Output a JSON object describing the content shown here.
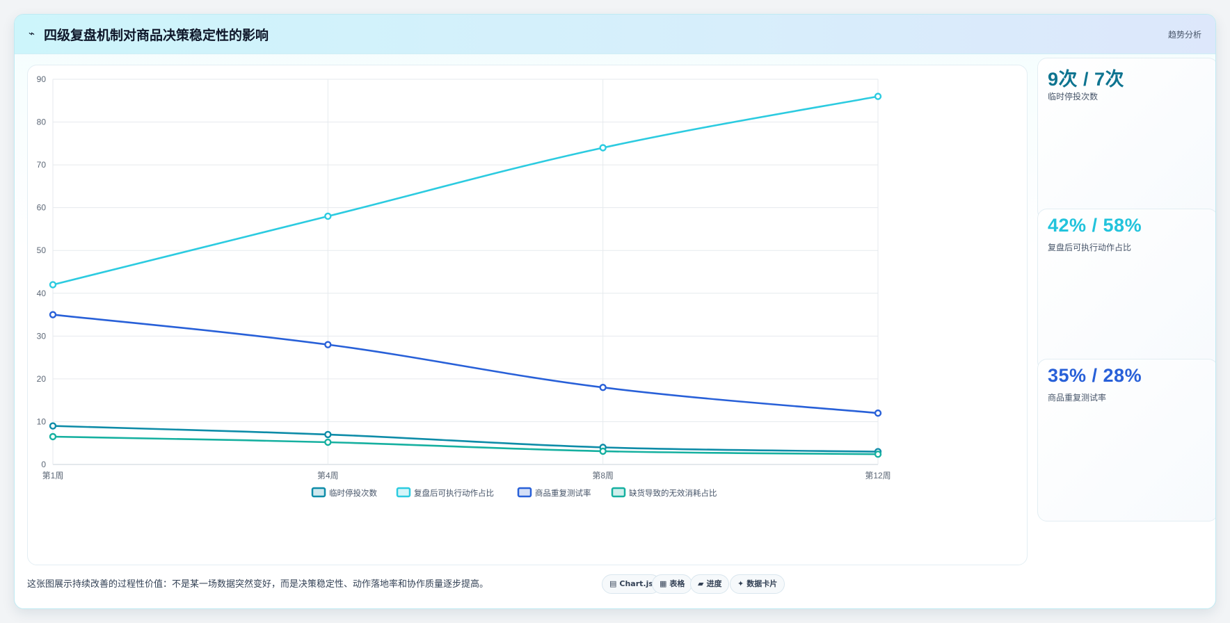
{
  "header": {
    "logo_icon": "⌁",
    "title": "四级复盘机制对商品决策稳定性的影响",
    "tag": "趋势分析"
  },
  "cards": [
    {
      "value": "9次 / 7次",
      "label": "临时停投次数",
      "color": "#0e7490"
    },
    {
      "value": "42% / 58%",
      "label": "复盘后可执行动作占比",
      "color": "#22c3dc"
    },
    {
      "value": "35% / 28%",
      "label": "商品重复测试率",
      "color": "#2860d8"
    }
  ],
  "footer": {
    "note": "这张图展示持续改善的过程性价值：不是某一场数据突然变好，而是决策稳定性、动作落地率和协作质量逐步提高。",
    "pills": [
      {
        "icon": "▤",
        "label": "Chart.js"
      },
      {
        "icon": "▦",
        "label": "表格"
      },
      {
        "icon": "▰",
        "label": "进度"
      },
      {
        "icon": "✦",
        "label": "数据卡片"
      }
    ]
  },
  "chart_data": {
    "type": "line",
    "categories": [
      "第1周",
      "第4周",
      "第8周",
      "第12周"
    ],
    "ylim": [
      0,
      90
    ],
    "yticks": [
      0,
      10,
      20,
      30,
      40,
      50,
      60,
      70,
      80,
      90
    ],
    "grid": true,
    "legend_position": "bottom",
    "series": [
      {
        "name": "临时停投次数",
        "values": [
          9,
          7,
          4,
          3
        ],
        "color": "#0e8ca8"
      },
      {
        "name": "复盘后可执行动作占比",
        "values": [
          42,
          58,
          74,
          86
        ],
        "color": "#2ccbe0"
      },
      {
        "name": "商品重复测试率",
        "values": [
          35,
          28,
          18,
          12
        ],
        "color": "#2860d8"
      },
      {
        "name": "缺货导致的无效消耗占比",
        "values": [
          6.5,
          5.2,
          3.1,
          2.4
        ],
        "color": "#16b0a0"
      }
    ]
  }
}
